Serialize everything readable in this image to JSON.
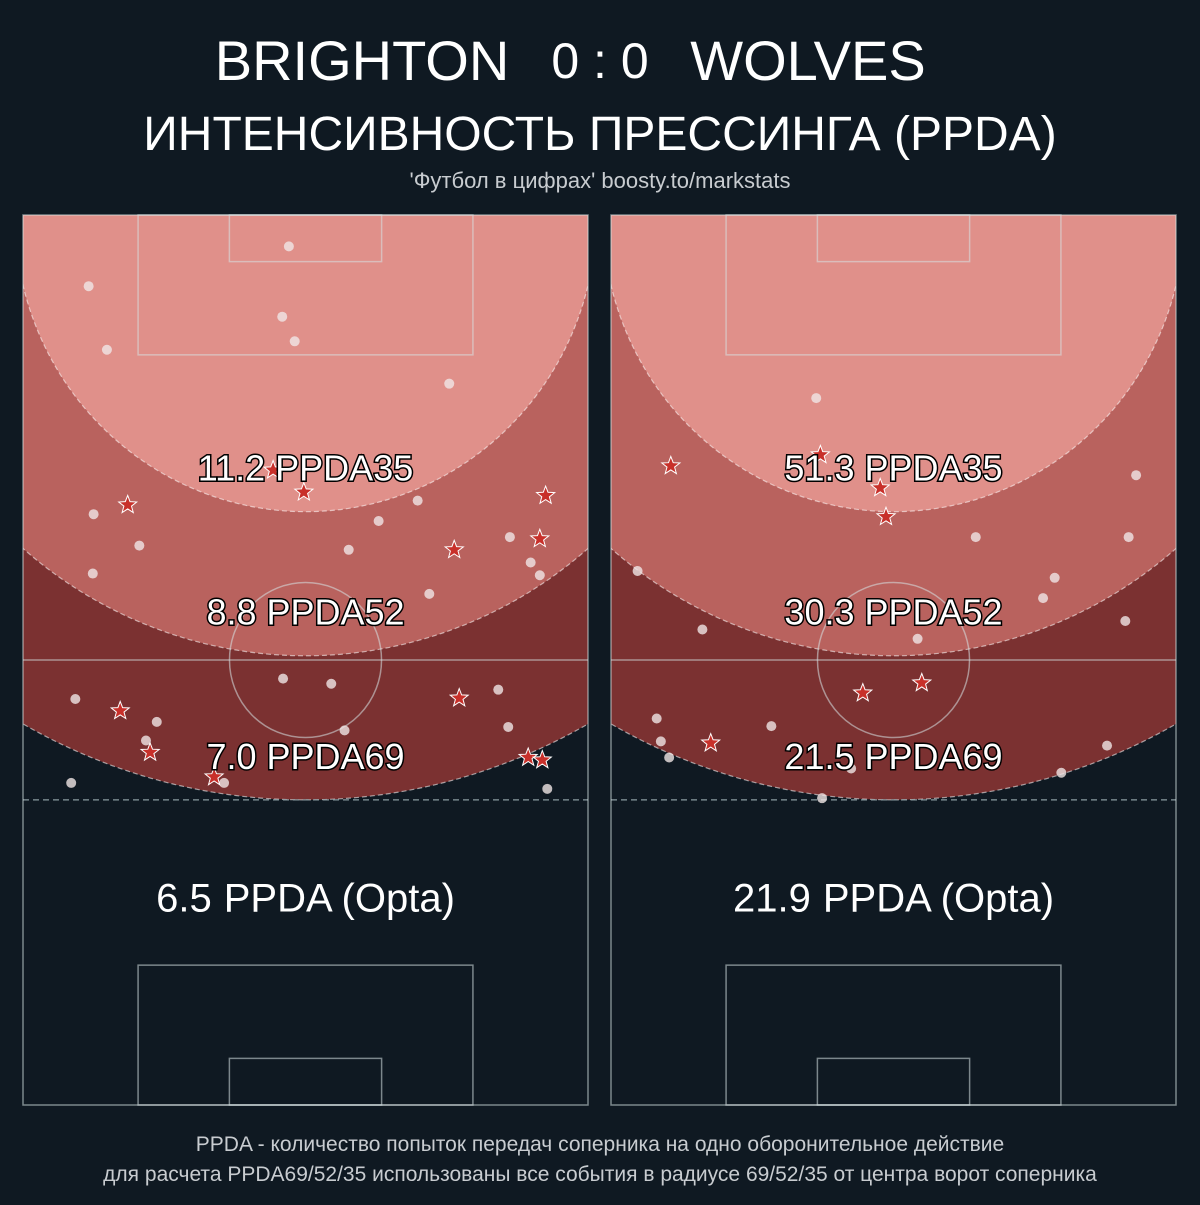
{
  "header": {
    "home": "BRIGHTON",
    "score": "0 : 0",
    "away": "WOLVES",
    "title": "ИНТЕНСИВНОСТЬ ПРЕССИНГА (PPDA)",
    "source": "'Футбол в цифрах' boosty.to/markstats"
  },
  "chart_data": [
    {
      "type": "pitch",
      "zones": [
        {
          "radius": 35,
          "value": 11.2,
          "label": "PPDA35",
          "color": "#e0908a"
        },
        {
          "radius": 52,
          "value": 8.8,
          "label": "PPDA52",
          "color": "#b9625e"
        },
        {
          "radius": 69,
          "value": 7,
          "value_label": "7.0",
          "label": "PPDA69",
          "color": "#7b3131"
        }
      ],
      "opta": {
        "value": 6.5,
        "label": "PPDA (Opta)"
      },
      "passes": {
        "color": "#f0e6e6",
        "x": [
          32.0,
          7.9,
          31.2,
          32.7,
          10.1,
          51.3,
          8.5,
          14.0,
          8.4,
          42.8,
          47.5,
          39.2,
          58.6,
          61.1,
          62.2,
          48.9,
          31.3,
          37.1,
          6.3,
          16.1,
          57.2,
          58.4,
          38.7,
          14.8,
          5.8,
          24.2,
          63.1
        ],
        "y": [
          3.7,
          8.4,
          12.0,
          14.9,
          15.9,
          19.9,
          35.3,
          39.0,
          42.3,
          36.1,
          33.7,
          39.5,
          38.0,
          41.0,
          42.5,
          44.7,
          54.7,
          55.3,
          57.1,
          59.8,
          56.0,
          60.4,
          60.8,
          62.0,
          67.0,
          67.0,
          67.7
        ]
      },
      "actions": {
        "color": "#c8302a",
        "x": [
          12.6,
          33.8,
          30.1,
          62.9,
          62.2,
          51.9,
          11.7,
          15.3,
          52.5,
          23.0,
          60.8,
          62.5
        ],
        "y": [
          34.2,
          32.7,
          30.1,
          33.1,
          38.2,
          39.5,
          58.5,
          63.4,
          57.0,
          66.3,
          64.0,
          64.3
        ]
      }
    },
    {
      "type": "pitch",
      "zones": [
        {
          "radius": 35,
          "value": 51.3,
          "label": "PPDA35",
          "color": "#e0908a"
        },
        {
          "radius": 52,
          "value": 30.3,
          "label": "PPDA52",
          "color": "#b9625e"
        },
        {
          "radius": 69,
          "value": 21.5,
          "label": "PPDA69",
          "color": "#7b3131"
        }
      ],
      "opta": {
        "value": 21.9,
        "label": "PPDA (Opta)"
      },
      "passes": {
        "color": "#f0e6e6",
        "x": [
          24.7,
          63.2,
          62.3,
          43.9,
          3.2,
          53.4,
          52.0,
          11.0,
          36.9,
          61.9,
          5.5,
          19.3,
          6.0,
          7.0,
          59.7,
          28.9,
          54.2,
          25.4
        ],
        "y": [
          21.6,
          30.7,
          38.0,
          38.0,
          42.0,
          42.8,
          45.2,
          48.9,
          50.0,
          47.9,
          59.4,
          60.3,
          62.1,
          64.0,
          62.6,
          65.3,
          65.8,
          68.8
        ]
      },
      "actions": {
        "color": "#c8302a",
        "x": [
          7.2,
          25.2,
          32.4,
          33.1,
          30.3,
          37.4,
          12.0
        ],
        "y": [
          29.6,
          28.3,
          32.2,
          35.6,
          56.4,
          55.2,
          62.3
        ]
      }
    }
  ],
  "footer": [
    "PPDA - количество попыток передач соперника на одно оборонительное действие",
    "для расчета PPDA69/52/35 использованы все события в радиусе 69/52/35 от центра ворот соперника"
  ]
}
